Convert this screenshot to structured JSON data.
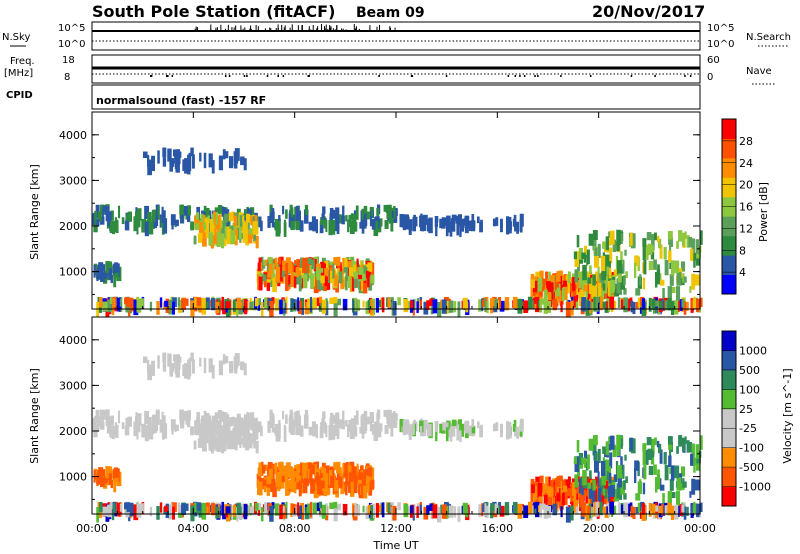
{
  "header": {
    "station": "South Pole Station (fitACF)",
    "beam": "Beam 09",
    "date": "20/Nov/2017"
  },
  "top_strips": {
    "nsky_label": "N.Sky",
    "nsky_ticks": [
      "10^5",
      "10^0"
    ],
    "nsearch_label": "N.Search",
    "nsearch_ticks": [
      "10^5",
      "10^0"
    ],
    "freq_label_line1": "Freq.",
    "freq_label_line2": "[MHz]",
    "freq_ticks": [
      "18",
      "8"
    ],
    "nave_label": "Nave",
    "nave_ticks": [
      "60",
      "0"
    ],
    "cpid_label": "CPID",
    "cpid_text": "normalsound (fast) -157 RF"
  },
  "colors": {
    "power_scale": [
      "#0000ff",
      "#2a56a6",
      "#2e8a3e",
      "#5aa05a",
      "#8dc63f",
      "#f0c400",
      "#ff8c00",
      "#ff5000",
      "#ff0000"
    ],
    "velocity_scale": [
      "#ff0000",
      "#ff5500",
      "#ff8c00",
      "#c8c8c8",
      "#c8c8c8",
      "#55bb33",
      "#2e8a5a",
      "#2a56a6",
      "#0000c8"
    ]
  },
  "chart_data": [
    {
      "type": "heatmap",
      "name": "power-panel",
      "ylabel": "Slant Range [km]",
      "yticks": [
        "1000",
        "2000",
        "3000",
        "4000"
      ],
      "ylim": [
        180,
        4500
      ],
      "colorbar_label": "Power [dB]",
      "colorbar_ticks": [
        "4",
        "8",
        "12",
        "16",
        "20",
        "24",
        "28"
      ],
      "colorbar_range": [
        0,
        30
      ]
    },
    {
      "type": "heatmap",
      "name": "velocity-panel",
      "ylabel": "Slant Range [km]",
      "yticks": [
        "1000",
        "2000",
        "3000",
        "4000"
      ],
      "ylim": [
        180,
        4500
      ],
      "colorbar_label": "Velocity [m s^-1]",
      "colorbar_ticks": [
        "1000",
        "500",
        "100",
        "25",
        "-25",
        "-100",
        "-500",
        "-1000"
      ]
    }
  ],
  "xaxis": {
    "ticks": [
      "00:00",
      "04:00",
      "08:00",
      "12:00",
      "16:00",
      "20:00",
      "00:00"
    ],
    "xlabel": "Time UT",
    "range_hours": [
      0,
      24
    ]
  }
}
